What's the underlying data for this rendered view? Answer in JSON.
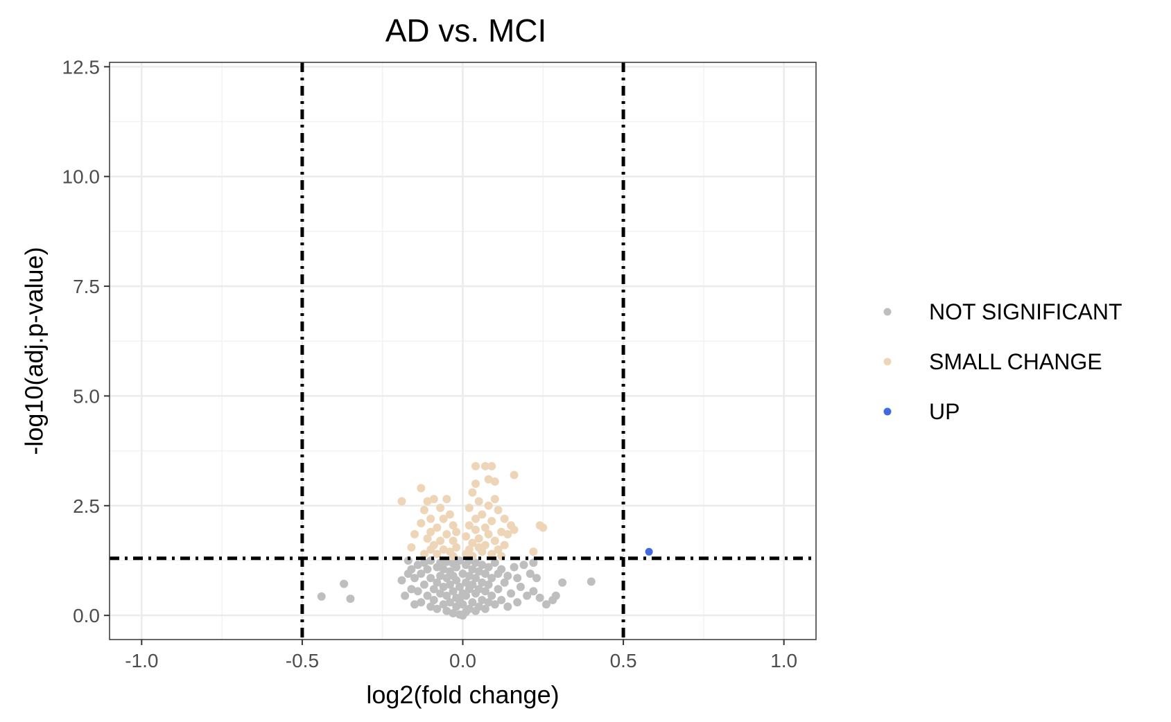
{
  "chart_data": {
    "type": "scatter",
    "title": "AD vs. MCI",
    "xlabel": "log2(fold change)",
    "ylabel": "-log10(adj.p-value)",
    "xlim": [
      -1.1,
      1.1
    ],
    "ylim": [
      -0.55,
      12.6
    ],
    "x_ticks": [
      -1.0,
      -0.5,
      0.0,
      0.5,
      1.0
    ],
    "x_tick_labels": [
      "-1.0",
      "-0.5",
      "0.0",
      "0.5",
      "1.0"
    ],
    "y_ticks": [
      0.0,
      2.5,
      5.0,
      7.5,
      10.0,
      12.5
    ],
    "y_tick_labels": [
      "0.0",
      "2.5",
      "5.0",
      "7.5",
      "10.0",
      "12.5"
    ],
    "grid": true,
    "legend_position": "right",
    "thresholds": {
      "vertical": [
        -0.5,
        0.5
      ],
      "horizontal": [
        1.3
      ]
    },
    "series": [
      {
        "name": "NOT SIGNIFICANT",
        "color": "#BEBEBE",
        "points": [
          [
            -0.44,
            0.43
          ],
          [
            -0.37,
            0.72
          ],
          [
            -0.35,
            0.38
          ],
          [
            -0.19,
            0.8
          ],
          [
            -0.18,
            0.45
          ],
          [
            -0.17,
            1.25
          ],
          [
            -0.17,
            0.95
          ],
          [
            -0.16,
            1.05
          ],
          [
            -0.16,
            0.6
          ],
          [
            -0.15,
            0.25
          ],
          [
            -0.15,
            0.85
          ],
          [
            -0.14,
            1.15
          ],
          [
            -0.14,
            0.55
          ],
          [
            -0.13,
            0.3
          ],
          [
            -0.13,
            0.95
          ],
          [
            -0.12,
            1.2
          ],
          [
            -0.12,
            0.7
          ],
          [
            -0.11,
            0.45
          ],
          [
            -0.11,
            1.05
          ],
          [
            -0.1,
            0.2
          ],
          [
            -0.1,
            0.85
          ],
          [
            -0.1,
            1.25
          ],
          [
            -0.09,
            0.6
          ],
          [
            -0.09,
            0.35
          ],
          [
            -0.08,
            1.1
          ],
          [
            -0.08,
            0.15
          ],
          [
            -0.08,
            0.75
          ],
          [
            -0.07,
            0.5
          ],
          [
            -0.07,
            1.2
          ],
          [
            -0.07,
            0.9
          ],
          [
            -0.06,
            0.25
          ],
          [
            -0.06,
            0.65
          ],
          [
            -0.06,
            1.05
          ],
          [
            -0.05,
            0.1
          ],
          [
            -0.05,
            0.45
          ],
          [
            -0.05,
            0.85
          ],
          [
            -0.05,
            1.22
          ],
          [
            -0.04,
            0.3
          ],
          [
            -0.04,
            0.7
          ],
          [
            -0.04,
            1.0
          ],
          [
            -0.03,
            0.05
          ],
          [
            -0.03,
            0.55
          ],
          [
            -0.03,
            0.9
          ],
          [
            -0.03,
            1.18
          ],
          [
            -0.02,
            0.2
          ],
          [
            -0.02,
            0.4
          ],
          [
            -0.02,
            0.8
          ],
          [
            -0.02,
            1.1
          ],
          [
            -0.01,
            0.02
          ],
          [
            -0.01,
            0.35
          ],
          [
            -0.01,
            0.65
          ],
          [
            -0.01,
            1.25
          ],
          [
            0.0,
            0.0
          ],
          [
            0.0,
            0.25
          ],
          [
            0.0,
            0.5
          ],
          [
            0.0,
            0.95
          ],
          [
            0.01,
            0.08
          ],
          [
            0.01,
            0.45
          ],
          [
            0.01,
            0.75
          ],
          [
            0.01,
            1.15
          ],
          [
            0.02,
            0.15
          ],
          [
            0.02,
            0.6
          ],
          [
            0.02,
            0.9
          ],
          [
            0.02,
            1.25
          ],
          [
            0.03,
            0.3
          ],
          [
            0.03,
            0.7
          ],
          [
            0.03,
            1.05
          ],
          [
            0.04,
            0.1
          ],
          [
            0.04,
            0.5
          ],
          [
            0.04,
            0.85
          ],
          [
            0.04,
            1.2
          ],
          [
            0.05,
            0.2
          ],
          [
            0.05,
            0.6
          ],
          [
            0.05,
            1.0
          ],
          [
            0.06,
            0.35
          ],
          [
            0.06,
            0.75
          ],
          [
            0.06,
            1.15
          ],
          [
            0.07,
            0.15
          ],
          [
            0.07,
            0.55
          ],
          [
            0.07,
            0.95
          ],
          [
            0.08,
            0.3
          ],
          [
            0.08,
            0.7
          ],
          [
            0.08,
            1.1
          ],
          [
            0.09,
            0.45
          ],
          [
            0.09,
            0.85
          ],
          [
            0.1,
            0.25
          ],
          [
            0.1,
            1.2
          ],
          [
            0.11,
            0.6
          ],
          [
            0.11,
            0.95
          ],
          [
            0.12,
            0.35
          ],
          [
            0.12,
            1.05
          ],
          [
            0.13,
            0.75
          ],
          [
            0.14,
            0.2
          ],
          [
            0.14,
            0.9
          ],
          [
            0.15,
            0.5
          ],
          [
            0.16,
            1.1
          ],
          [
            0.17,
            0.3
          ],
          [
            0.17,
            0.85
          ],
          [
            0.18,
            0.65
          ],
          [
            0.19,
            1.15
          ],
          [
            0.2,
            0.45
          ],
          [
            0.21,
            0.95
          ],
          [
            0.22,
            1.2
          ],
          [
            0.22,
            0.55
          ],
          [
            0.23,
            0.85
          ],
          [
            0.24,
            0.4
          ],
          [
            0.26,
            0.25
          ],
          [
            0.28,
            0.35
          ],
          [
            0.29,
            0.45
          ],
          [
            0.31,
            0.75
          ],
          [
            0.4,
            0.77
          ]
        ]
      },
      {
        "name": "SMALL CHANGE",
        "color": "#EED5B7",
        "points": [
          [
            -0.19,
            2.6
          ],
          [
            -0.16,
            1.55
          ],
          [
            -0.15,
            1.85
          ],
          [
            -0.13,
            2.9
          ],
          [
            -0.13,
            2.1
          ],
          [
            -0.12,
            1.4
          ],
          [
            -0.12,
            2.4
          ],
          [
            -0.11,
            1.75
          ],
          [
            -0.11,
            2.6
          ],
          [
            -0.1,
            1.5
          ],
          [
            -0.1,
            2.2
          ],
          [
            -0.1,
            1.9
          ],
          [
            -0.09,
            2.65
          ],
          [
            -0.09,
            1.6
          ],
          [
            -0.08,
            2.0
          ],
          [
            -0.08,
            1.4
          ],
          [
            -0.07,
            2.45
          ],
          [
            -0.07,
            1.7
          ],
          [
            -0.06,
            2.2
          ],
          [
            -0.06,
            1.5
          ],
          [
            -0.05,
            1.85
          ],
          [
            -0.05,
            2.65
          ],
          [
            -0.04,
            1.45
          ],
          [
            -0.04,
            2.3
          ],
          [
            -0.03,
            1.7
          ],
          [
            -0.03,
            2.05
          ],
          [
            -0.03,
            1.35
          ],
          [
            -0.02,
            1.55
          ],
          [
            -0.02,
            1.9
          ],
          [
            0.01,
            1.4
          ],
          [
            0.01,
            1.8
          ],
          [
            0.02,
            2.05
          ],
          [
            0.02,
            1.5
          ],
          [
            0.02,
            2.45
          ],
          [
            0.03,
            1.65
          ],
          [
            0.03,
            2.8
          ],
          [
            0.03,
            1.35
          ],
          [
            0.04,
            2.2
          ],
          [
            0.04,
            3.4
          ],
          [
            0.04,
            1.95
          ],
          [
            0.04,
            3.0
          ],
          [
            0.05,
            1.55
          ],
          [
            0.05,
            2.6
          ],
          [
            0.05,
            1.75
          ],
          [
            0.06,
            2.3
          ],
          [
            0.06,
            1.45
          ],
          [
            0.07,
            3.4
          ],
          [
            0.07,
            2.0
          ],
          [
            0.07,
            1.6
          ],
          [
            0.08,
            2.5
          ],
          [
            0.08,
            1.85
          ],
          [
            0.08,
            3.1
          ],
          [
            0.09,
            1.4
          ],
          [
            0.09,
            2.15
          ],
          [
            0.09,
            3.4
          ],
          [
            0.1,
            1.7
          ],
          [
            0.1,
            2.65
          ],
          [
            0.1,
            3.05
          ],
          [
            0.11,
            1.5
          ],
          [
            0.11,
            2.4
          ],
          [
            0.12,
            1.9
          ],
          [
            0.12,
            1.35
          ],
          [
            0.13,
            2.2
          ],
          [
            0.13,
            1.6
          ],
          [
            0.14,
            1.85
          ],
          [
            0.15,
            2.05
          ],
          [
            0.16,
            1.95
          ],
          [
            0.16,
            3.2
          ],
          [
            0.22,
            1.45
          ],
          [
            0.24,
            2.05
          ],
          [
            0.25,
            2.0
          ]
        ]
      },
      {
        "name": "UP",
        "color": "#4169E1",
        "points": [
          [
            0.58,
            1.45
          ]
        ]
      }
    ]
  }
}
